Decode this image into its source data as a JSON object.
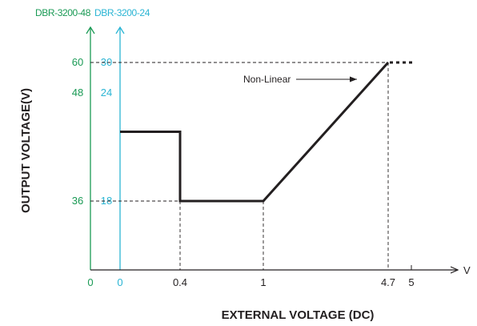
{
  "chart_data": {
    "type": "line",
    "title": "",
    "xlabel": "EXTERNAL VOLTAGE (DC)",
    "x_unit": "V",
    "ylabel": "OUTPUT  VOLTAGE(V)",
    "x_ticks": [
      "0.4",
      "1",
      "4.7",
      "5"
    ],
    "axis_48": {
      "name": "DBR-3200-48",
      "color": "#1a9a55",
      "ticks": [
        "0",
        "36",
        "48",
        "60"
      ]
    },
    "axis_24": {
      "name": "DBR-3200-24",
      "color": "#2bb5d4",
      "ticks": [
        "0",
        "18",
        "24",
        "30"
      ]
    },
    "series": [
      {
        "points": [
          {
            "x": 0,
            "y48": 48,
            "y24": 24
          },
          {
            "x": 0.4,
            "y48": 48,
            "y24": 24
          },
          {
            "x": 0.4,
            "y48": 36,
            "y24": 18
          },
          {
            "x": 1,
            "y48": 36,
            "y24": 18
          },
          {
            "x": 4.7,
            "y48": 60,
            "y24": 30
          }
        ],
        "dotted_extension": {
          "from": 4.7,
          "to": 5,
          "y48": 60,
          "y24": 30
        }
      }
    ],
    "annotation": "Non-Linear",
    "grid": false,
    "reference_lines": "dashed"
  }
}
